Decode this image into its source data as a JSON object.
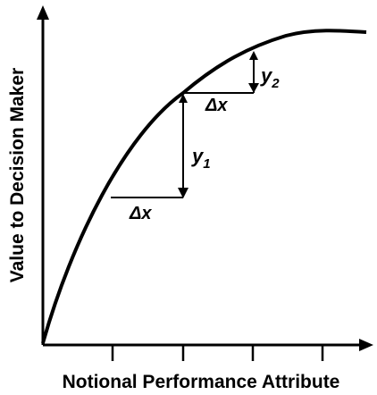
{
  "diagram": {
    "x_axis_label": "Notional Performance Attribute",
    "y_axis_label": "Value to Decision Maker",
    "step_lower": {
      "dx_label": "Δx",
      "dy_label": "y",
      "dy_subscript": "1"
    },
    "step_upper": {
      "dx_label": "Δx",
      "dy_label": "y",
      "dy_subscript": "2"
    },
    "x_tick_count": 4,
    "colors": {
      "ink": "#000000",
      "background": "#ffffff"
    }
  }
}
